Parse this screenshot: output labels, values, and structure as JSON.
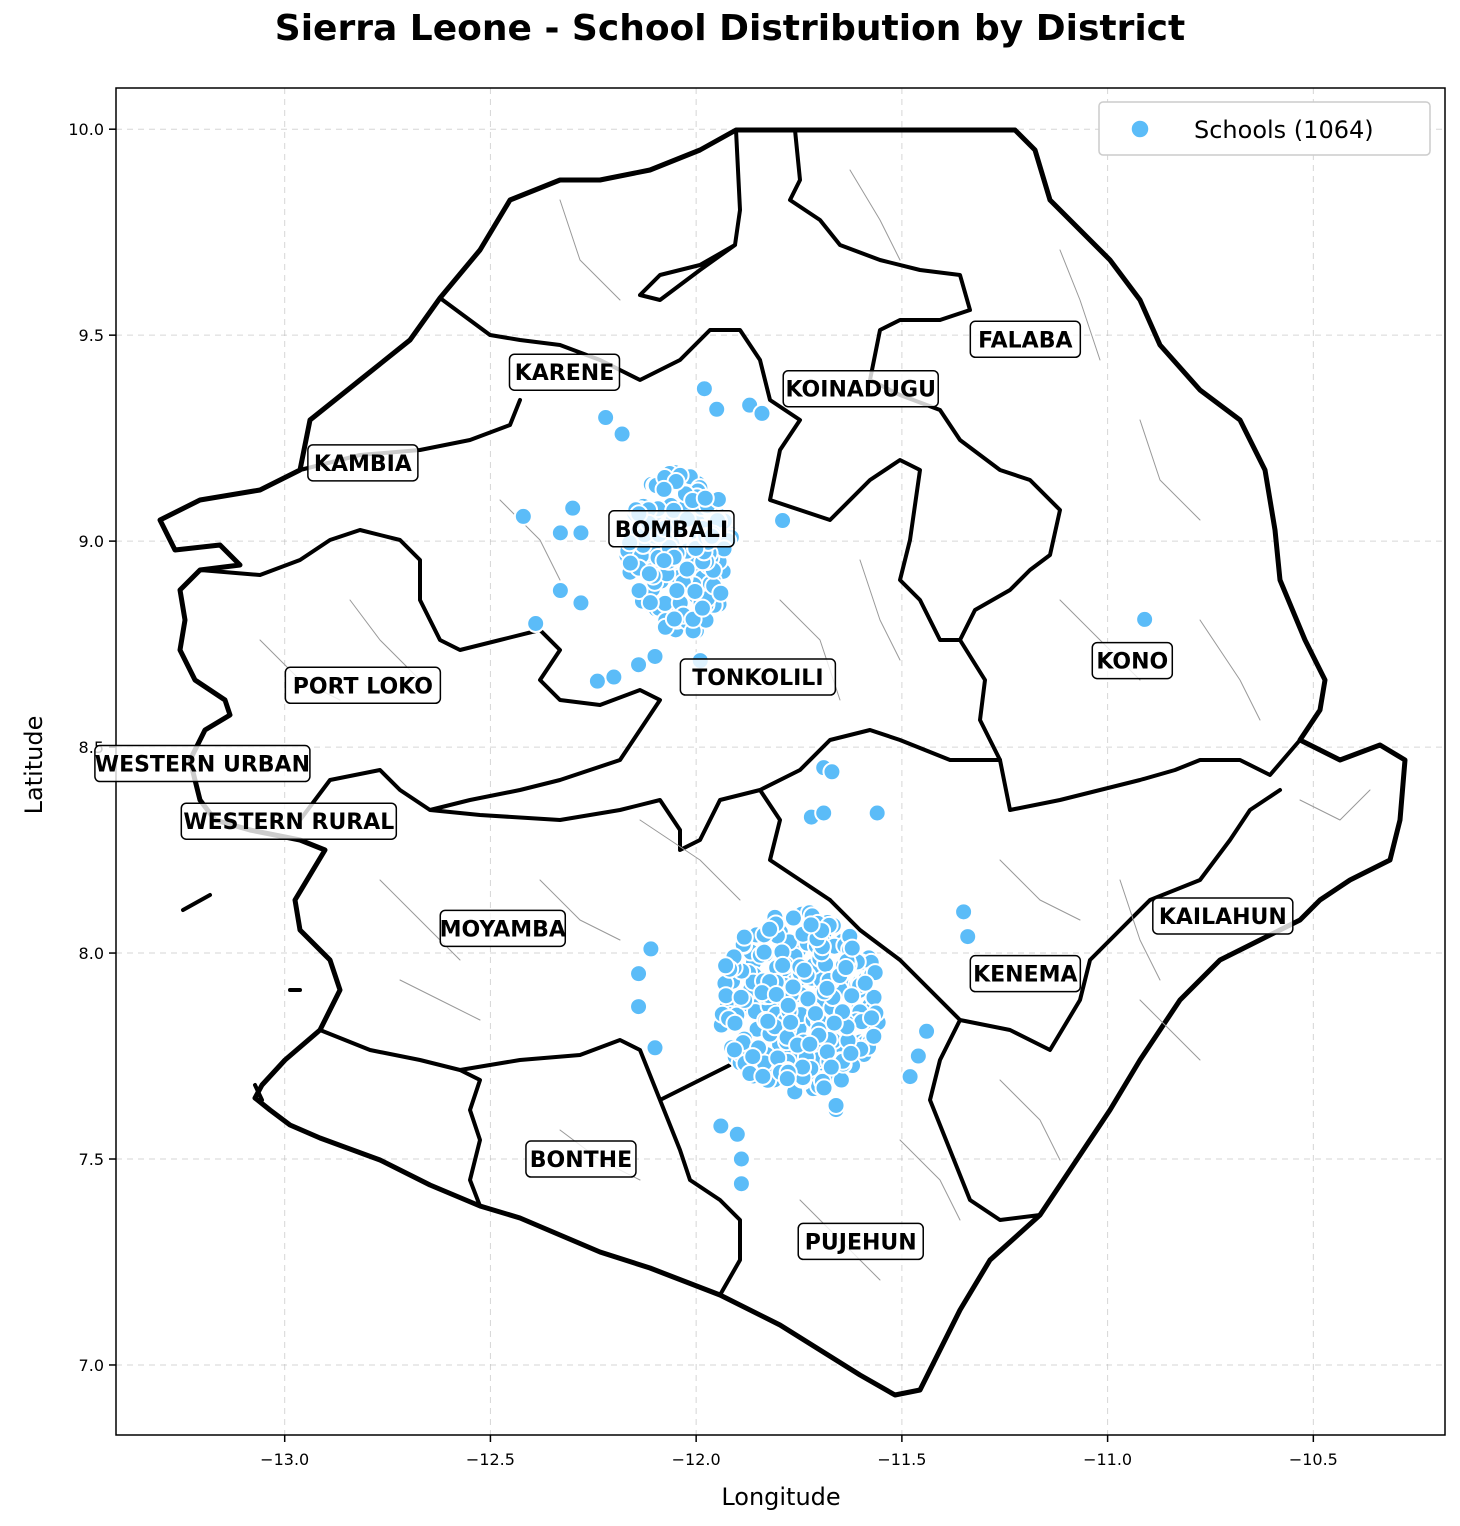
{
  "title": "Sierra Leone - School Distribution by District",
  "chart_data": {
    "type": "scatter",
    "title": "Sierra Leone - School Distribution by District",
    "xlabel": "Longitude",
    "ylabel": "Latitude",
    "xlim": [
      -13.41,
      -10.18
    ],
    "ylim": [
      6.83,
      10.1
    ],
    "x_ticks": [
      "−13.0",
      "−12.5",
      "−12.0",
      "−11.5",
      "−11.0",
      "−10.5"
    ],
    "x_tick_values": [
      -13.0,
      -12.5,
      -12.0,
      -11.5,
      -11.0,
      -10.5
    ],
    "y_ticks": [
      "7.0",
      "7.5",
      "8.0",
      "8.5",
      "9.0",
      "9.5",
      "10.0"
    ],
    "y_tick_values": [
      7.0,
      7.5,
      8.0,
      8.5,
      9.0,
      9.5,
      10.0
    ],
    "grid": true,
    "legend_position": "top-right",
    "series": [
      {
        "name": "Schools (1064)",
        "color": "#5bbcf8",
        "clusters": [
          {
            "center": [
              -12.04,
              8.97
            ],
            "spread": [
              0.13,
              0.2
            ]
          },
          {
            "center": [
              -11.75,
              7.88
            ],
            "spread": [
              0.2,
              0.22
            ]
          }
        ],
        "points": [
          [
            -12.42,
            9.06
          ],
          [
            -12.3,
            9.08
          ],
          [
            -12.28,
            9.02
          ],
          [
            -12.33,
            9.02
          ],
          [
            -12.39,
            8.8
          ],
          [
            -12.22,
            9.3
          ],
          [
            -11.98,
            9.37
          ],
          [
            -11.95,
            9.32
          ],
          [
            -11.87,
            9.33
          ],
          [
            -11.84,
            9.31
          ],
          [
            -11.79,
            9.05
          ],
          [
            -12.18,
            9.26
          ],
          [
            -12.24,
            8.66
          ],
          [
            -12.2,
            8.67
          ],
          [
            -12.14,
            8.7
          ],
          [
            -12.1,
            8.72
          ],
          [
            -11.99,
            8.71
          ],
          [
            -12.33,
            8.88
          ],
          [
            -12.28,
            8.85
          ],
          [
            -10.91,
            8.81
          ],
          [
            -11.69,
            8.45
          ],
          [
            -11.67,
            8.44
          ],
          [
            -11.72,
            8.33
          ],
          [
            -11.69,
            8.34
          ],
          [
            -11.56,
            8.34
          ],
          [
            -11.35,
            8.1
          ],
          [
            -11.34,
            8.04
          ],
          [
            -12.11,
            8.01
          ],
          [
            -12.14,
            7.95
          ],
          [
            -12.14,
            7.87
          ],
          [
            -12.1,
            7.77
          ],
          [
            -11.89,
            7.44
          ],
          [
            -11.89,
            7.5
          ],
          [
            -11.9,
            7.56
          ],
          [
            -11.94,
            7.58
          ],
          [
            -11.66,
            7.62
          ],
          [
            -11.66,
            7.63
          ],
          [
            -11.48,
            7.7
          ],
          [
            -11.46,
            7.75
          ],
          [
            -11.44,
            7.81
          ]
        ]
      }
    ]
  },
  "district_labels": [
    {
      "name": "FALABA",
      "lon": -11.2,
      "lat": 9.49
    },
    {
      "name": "KARENE",
      "lon": -12.32,
      "lat": 9.41
    },
    {
      "name": "KOINADUGU",
      "lon": -11.6,
      "lat": 9.37
    },
    {
      "name": "KAMBIA",
      "lon": -12.81,
      "lat": 9.19
    },
    {
      "name": "BOMBALI",
      "lon": -12.06,
      "lat": 9.03
    },
    {
      "name": "KONO",
      "lon": -10.94,
      "lat": 8.71
    },
    {
      "name": "TONKOLILI",
      "lon": -11.85,
      "lat": 8.67
    },
    {
      "name": "PORT LOKO",
      "lon": -12.81,
      "lat": 8.65
    },
    {
      "name": "WESTERN URBAN",
      "lon": -13.2,
      "lat": 8.46
    },
    {
      "name": "WESTERN RURAL",
      "lon": -12.99,
      "lat": 8.32
    },
    {
      "name": "KAILAHUN",
      "lon": -10.72,
      "lat": 8.09
    },
    {
      "name": "MOYAMBA",
      "lon": -12.47,
      "lat": 8.06
    },
    {
      "name": "KENEMA",
      "lon": -11.2,
      "lat": 7.95
    },
    {
      "name": "BONTHE",
      "lon": -12.28,
      "lat": 7.5
    },
    {
      "name": "PUJEHUN",
      "lon": -11.6,
      "lat": 7.3
    }
  ]
}
